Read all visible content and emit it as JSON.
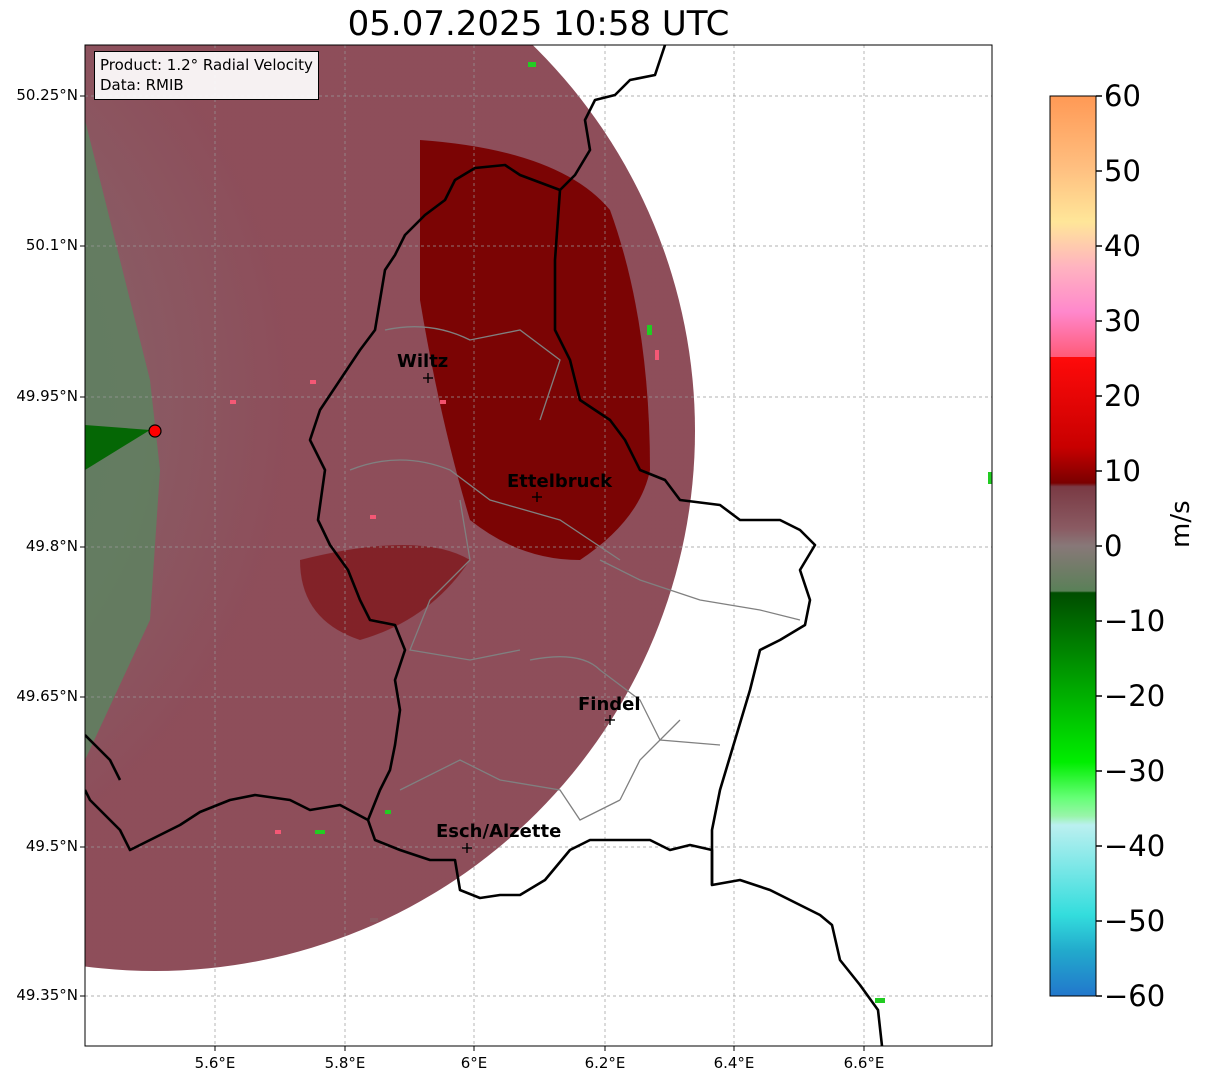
{
  "title": "05.07.2025 10:58 UTC",
  "info": {
    "product": "Product: 1.2° Radial Velocity",
    "source": "Data: RMIB"
  },
  "lat_ticks": [
    "50.25°N",
    "50.1°N",
    "49.95°N",
    "49.8°N",
    "49.65°N",
    "49.5°N",
    "49.35°N"
  ],
  "lon_ticks": [
    "5.6°E",
    "5.8°E",
    "6°E",
    "6.2°E",
    "6.4°E",
    "6.6°E"
  ],
  "colorbar": {
    "label": "m/s",
    "ticks": [
      "60",
      "50",
      "40",
      "30",
      "20",
      "10",
      "0",
      "−10",
      "−20",
      "−30",
      "−40",
      "−50",
      "−60"
    ],
    "range": [
      -60,
      60
    ],
    "colors": {
      "positive_high": "#ff9955",
      "yellow": "#ffe699",
      "pink": "#ff88cc",
      "red_bright": "#ff1a1a",
      "dark_red": "#7a0000",
      "near_zero": "#8a6a6e",
      "green_dark": "#006600",
      "green_bright": "#00ee00",
      "cyan": "#33dddd",
      "blue": "#2277cc"
    }
  },
  "cities": [
    {
      "name": "Wiltz"
    },
    {
      "name": "Ettelbruck"
    },
    {
      "name": "Findel"
    },
    {
      "name": "Esch/Alzette"
    }
  ],
  "radar_marker_color": "#ff0000"
}
